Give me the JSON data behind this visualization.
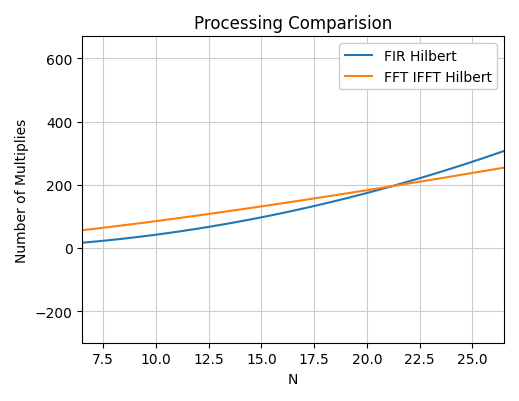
{
  "title": "Processing Comparision",
  "xlabel": "N",
  "ylabel": "Number of Multiplies",
  "xlim": [
    6.5,
    26.5
  ],
  "ylim": [
    -300,
    670
  ],
  "yticks": [
    -200,
    0,
    200,
    400,
    600
  ],
  "fir_color": "#1f77b4",
  "fft_color": "#ff7f0e",
  "fir_label": "FIR Hilbert",
  "fft_label": "FFT IFFT Hilbert",
  "grid": true,
  "x_start": 6.5,
  "x_end": 26.5,
  "n_points": 500,
  "fir_a": 0.44,
  "fir_b": -2.0,
  "fft_a": 1.839,
  "fft_b": 23.86
}
